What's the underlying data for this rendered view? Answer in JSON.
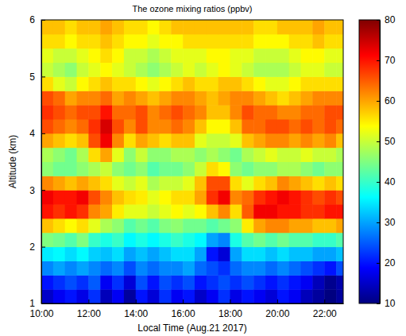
{
  "chart_data": {
    "type": "heatmap",
    "title": "The ozone mixing ratios (ppbv)",
    "x_label": "Local Time (Aug.21 2017)",
    "y_label": "Altitude (km)",
    "color": "jet",
    "xlim": [
      10,
      22.8
    ],
    "xticks": [
      {
        "value": 10,
        "label": "10:00"
      },
      {
        "value": 12,
        "label": "12:00"
      },
      {
        "value": 14,
        "label": "14:00"
      },
      {
        "value": 16,
        "label": "16:00"
      },
      {
        "value": 18,
        "label": "18:00"
      },
      {
        "value": 20,
        "label": "20:00"
      },
      {
        "value": 22,
        "label": "22:00"
      }
    ],
    "ylim": [
      1,
      6
    ],
    "yticks": [
      1,
      2,
      3,
      4,
      5,
      6
    ],
    "zlim": [
      10,
      80
    ],
    "zticks": [
      10,
      20,
      30,
      40,
      50,
      60,
      70,
      80
    ],
    "x": [
      10.25,
      10.75,
      11.25,
      11.75,
      12.25,
      12.75,
      13.25,
      13.75,
      14.25,
      14.75,
      15.25,
      15.75,
      16.25,
      16.75,
      17.25,
      17.75,
      18.25,
      18.75,
      19.25,
      19.75,
      20.25,
      20.75,
      21.25,
      21.75,
      22.25,
      22.75
    ],
    "y": [
      1.125,
      1.375,
      1.625,
      1.875,
      2.125,
      2.375,
      2.625,
      2.875,
      3.125,
      3.375,
      3.625,
      3.875,
      4.125,
      4.375,
      4.625,
      4.875,
      5.125,
      5.375,
      5.625,
      5.875
    ],
    "z": [
      [
        15,
        18,
        20,
        17,
        22,
        14,
        18,
        12,
        20,
        16,
        22,
        18,
        20,
        15,
        18,
        22,
        17,
        20,
        18,
        16,
        20,
        18,
        14,
        12,
        10,
        12
      ],
      [
        20,
        22,
        24,
        22,
        25,
        18,
        22,
        16,
        24,
        20,
        24,
        22,
        24,
        20,
        22,
        24,
        22,
        24,
        22,
        20,
        22,
        20,
        18,
        14,
        11,
        13
      ],
      [
        28,
        30,
        28,
        30,
        28,
        26,
        28,
        24,
        28,
        26,
        28,
        28,
        30,
        26,
        24,
        22,
        26,
        28,
        28,
        26,
        28,
        26,
        24,
        22,
        20,
        24
      ],
      [
        35,
        36,
        34,
        36,
        33,
        32,
        34,
        30,
        32,
        30,
        32,
        34,
        34,
        30,
        20,
        16,
        30,
        34,
        34,
        32,
        34,
        32,
        32,
        30,
        30,
        32
      ],
      [
        45,
        44,
        42,
        45,
        40,
        38,
        40,
        36,
        38,
        36,
        38,
        40,
        38,
        36,
        30,
        28,
        38,
        42,
        44,
        42,
        44,
        42,
        42,
        40,
        40,
        42
      ],
      [
        58,
        56,
        54,
        56,
        52,
        48,
        46,
        42,
        44,
        42,
        45,
        46,
        44,
        44,
        42,
        44,
        46,
        55,
        60,
        62,
        62,
        60,
        60,
        58,
        58,
        60
      ],
      [
        70,
        68,
        70,
        68,
        62,
        60,
        55,
        52,
        52,
        50,
        52,
        54,
        52,
        54,
        58,
        62,
        56,
        65,
        72,
        72,
        70,
        70,
        68,
        68,
        70,
        70
      ],
      [
        72,
        70,
        70,
        72,
        66,
        62,
        58,
        56,
        55,
        52,
        54,
        56,
        56,
        60,
        68,
        72,
        62,
        64,
        68,
        70,
        72,
        70,
        68,
        66,
        68,
        66
      ],
      [
        62,
        60,
        58,
        60,
        58,
        56,
        52,
        50,
        52,
        48,
        50,
        50,
        52,
        58,
        66,
        66,
        56,
        52,
        56,
        58,
        62,
        60,
        58,
        56,
        58,
        56
      ],
      [
        46,
        44,
        44,
        46,
        48,
        50,
        46,
        44,
        46,
        42,
        44,
        44,
        46,
        50,
        56,
        54,
        46,
        44,
        46,
        46,
        48,
        48,
        46,
        44,
        46,
        46
      ],
      [
        48,
        46,
        44,
        48,
        56,
        60,
        52,
        46,
        50,
        46,
        46,
        48,
        48,
        46,
        48,
        46,
        44,
        48,
        50,
        52,
        50,
        50,
        52,
        50,
        50,
        48
      ],
      [
        60,
        58,
        56,
        58,
        66,
        72,
        62,
        56,
        60,
        58,
        56,
        58,
        58,
        52,
        50,
        50,
        52,
        58,
        60,
        62,
        62,
        60,
        62,
        60,
        62,
        58
      ],
      [
        66,
        64,
        62,
        64,
        68,
        74,
        66,
        62,
        66,
        62,
        62,
        64,
        62,
        58,
        54,
        54,
        58,
        64,
        64,
        66,
        66,
        64,
        66,
        64,
        66,
        64
      ],
      [
        68,
        66,
        64,
        66,
        66,
        70,
        64,
        64,
        66,
        62,
        64,
        66,
        64,
        62,
        58,
        58,
        62,
        66,
        64,
        64,
        62,
        62,
        64,
        64,
        66,
        66
      ],
      [
        66,
        64,
        60,
        62,
        62,
        64,
        60,
        62,
        60,
        58,
        60,
        62,
        62,
        60,
        58,
        60,
        62,
        62,
        60,
        58,
        56,
        58,
        60,
        62,
        62,
        62
      ],
      [
        56,
        52,
        50,
        54,
        56,
        58,
        56,
        56,
        54,
        52,
        54,
        56,
        58,
        56,
        56,
        58,
        58,
        56,
        54,
        52,
        52,
        54,
        56,
        56,
        56,
        56
      ],
      [
        50,
        48,
        46,
        50,
        52,
        54,
        52,
        50,
        48,
        46,
        48,
        50,
        52,
        50,
        52,
        54,
        52,
        50,
        48,
        48,
        48,
        50,
        52,
        52,
        50,
        50
      ],
      [
        52,
        50,
        50,
        52,
        54,
        56,
        54,
        50,
        50,
        48,
        50,
        52,
        52,
        52,
        54,
        54,
        52,
        52,
        50,
        50,
        50,
        52,
        54,
        54,
        52,
        52
      ],
      [
        56,
        56,
        54,
        56,
        56,
        58,
        56,
        54,
        54,
        52,
        54,
        54,
        56,
        56,
        56,
        56,
        56,
        56,
        54,
        54,
        54,
        56,
        56,
        58,
        56,
        56
      ],
      [
        58,
        58,
        56,
        58,
        58,
        60,
        58,
        56,
        56,
        54,
        56,
        58,
        58,
        58,
        58,
        58,
        58,
        58,
        56,
        56,
        58,
        58,
        58,
        60,
        58,
        58
      ]
    ]
  }
}
